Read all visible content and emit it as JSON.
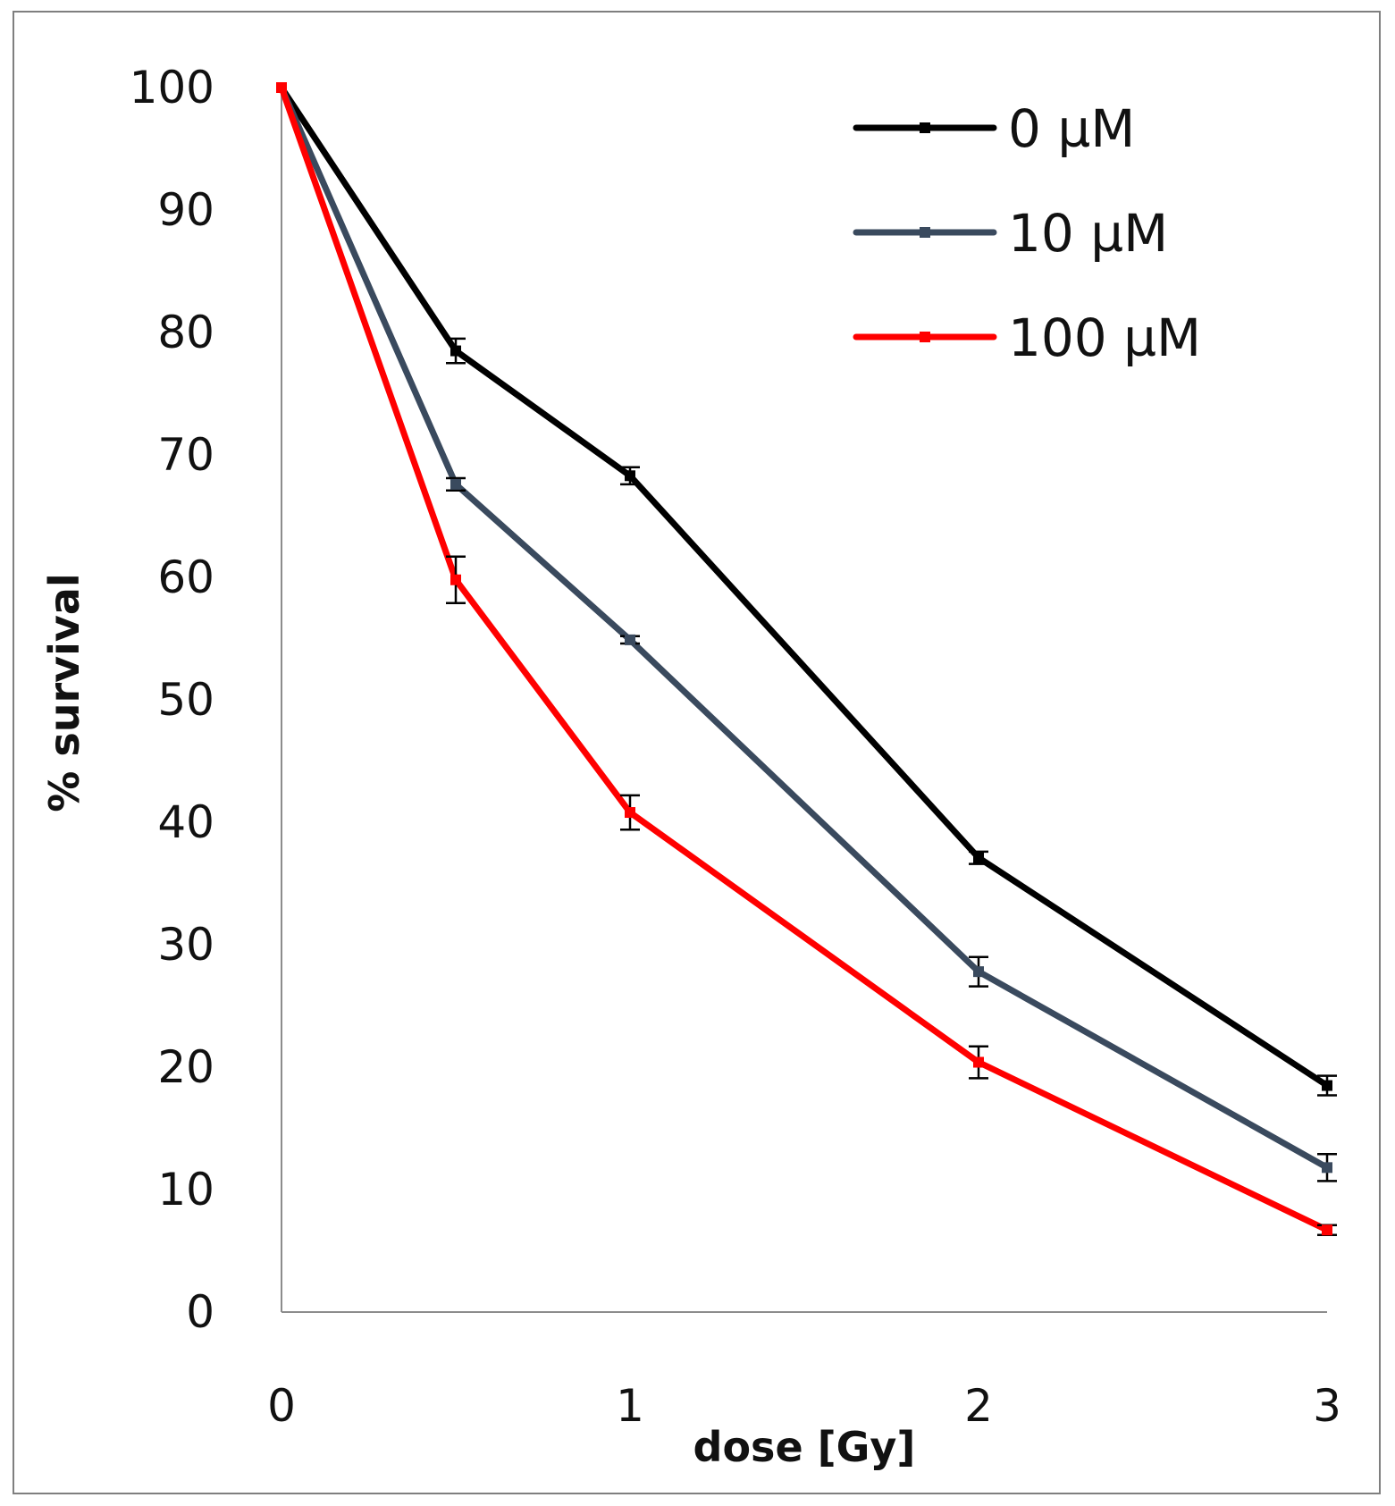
{
  "chart_data": {
    "type": "line",
    "title": "",
    "xlabel": "dose [Gy]",
    "ylabel": "% survival",
    "x": [
      0,
      0.5,
      1,
      2,
      3
    ],
    "xlim": [
      0,
      3
    ],
    "ylim": [
      0,
      100
    ],
    "xticks": [
      0,
      1,
      2,
      3
    ],
    "yticks": [
      0,
      10,
      20,
      30,
      40,
      50,
      60,
      70,
      80,
      90,
      100
    ],
    "grid": false,
    "legend_position": "top-right",
    "series": [
      {
        "name": "0 µM",
        "color": "#000000",
        "values": [
          100,
          78.5,
          68.3,
          37.1,
          18.5
        ],
        "errors": [
          0,
          1.0,
          0.7,
          0.5,
          0.8
        ]
      },
      {
        "name": "10 µM",
        "color": "#3a4a5e",
        "values": [
          100,
          67.6,
          54.9,
          27.8,
          11.8
        ],
        "errors": [
          0,
          0.5,
          0.3,
          1.2,
          1.1
        ]
      },
      {
        "name": "100 µM",
        "color": "#ff0000",
        "values": [
          100,
          59.8,
          40.8,
          20.4,
          6.7
        ],
        "errors": [
          0,
          1.9,
          1.4,
          1.3,
          0.4
        ]
      }
    ]
  }
}
